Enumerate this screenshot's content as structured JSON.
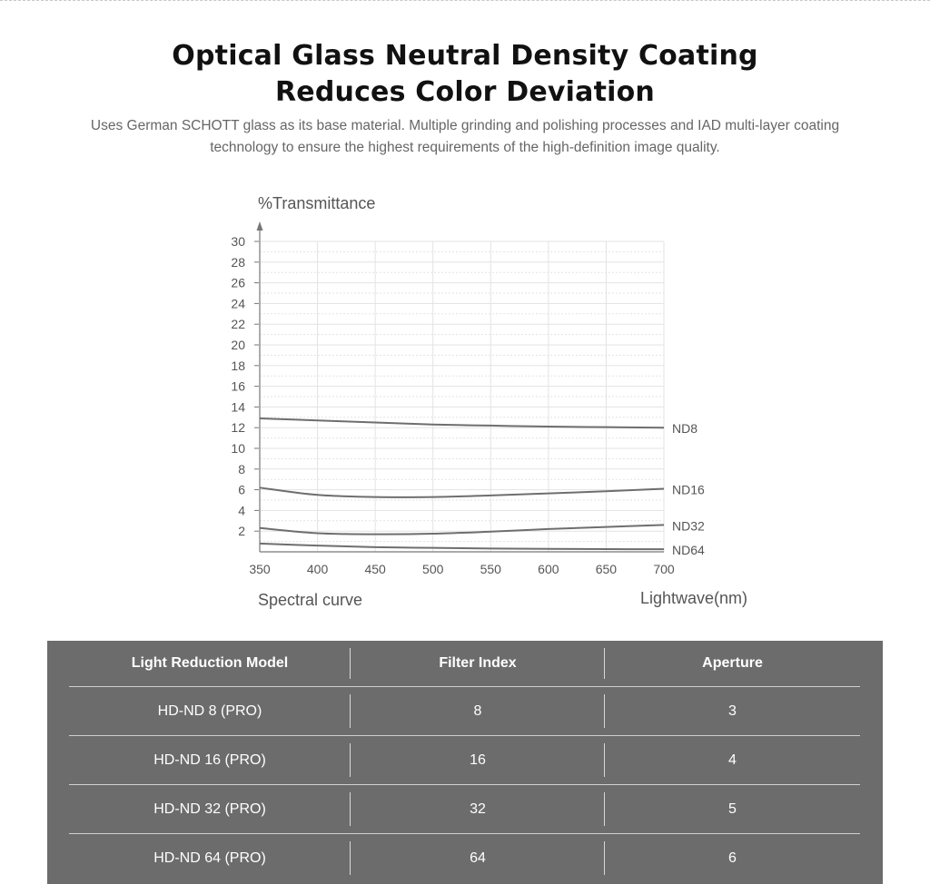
{
  "header": {
    "title_line1": "Optical Glass Neutral Density Coating",
    "title_line2": "Reduces Color Deviation",
    "subtitle": "Uses German SCHOTT glass as its base material. Multiple grinding and polishing processes and IAD multi-layer coating technology to ensure the highest requirements of the high-definition image quality."
  },
  "chart_data": {
    "type": "line",
    "title": "Spectral curve",
    "ylabel": "%Transmittance",
    "xlabel": "Lightwave(nm)",
    "xlim": [
      350,
      700
    ],
    "ylim": [
      0,
      30
    ],
    "x_ticks": [
      350,
      400,
      450,
      500,
      550,
      600,
      650,
      700
    ],
    "y_ticks": [
      2,
      4,
      6,
      8,
      10,
      12,
      14,
      16,
      18,
      20,
      22,
      24,
      26,
      28,
      30
    ],
    "grid": true,
    "x": [
      350,
      400,
      450,
      500,
      550,
      600,
      650,
      700
    ],
    "series": [
      {
        "name": "ND8",
        "values": [
          12.9,
          12.7,
          12.5,
          12.3,
          12.2,
          12.1,
          12.05,
          12.0
        ]
      },
      {
        "name": "ND16",
        "values": [
          6.2,
          5.5,
          5.3,
          5.3,
          5.45,
          5.65,
          5.85,
          6.1
        ]
      },
      {
        "name": "ND32",
        "values": [
          2.3,
          1.8,
          1.7,
          1.75,
          1.95,
          2.2,
          2.4,
          2.6
        ]
      },
      {
        "name": "ND64",
        "values": [
          0.8,
          0.6,
          0.45,
          0.38,
          0.32,
          0.28,
          0.26,
          0.25
        ]
      }
    ],
    "colors": {
      "line": "#6e6e6e",
      "grid": "#e3e3e3",
      "axis": "#777777"
    }
  },
  "table": {
    "headers": [
      "Light Reduction Model",
      "Filter Index",
      "Aperture"
    ],
    "rows": [
      [
        "HD-ND 8 (PRO)",
        "8",
        "3"
      ],
      [
        "HD-ND 16 (PRO)",
        "16",
        "4"
      ],
      [
        "HD-ND 32 (PRO)",
        "32",
        "5"
      ],
      [
        "HD-ND 64 (PRO)",
        "64",
        "6"
      ]
    ],
    "background": "#6c6c6c"
  }
}
